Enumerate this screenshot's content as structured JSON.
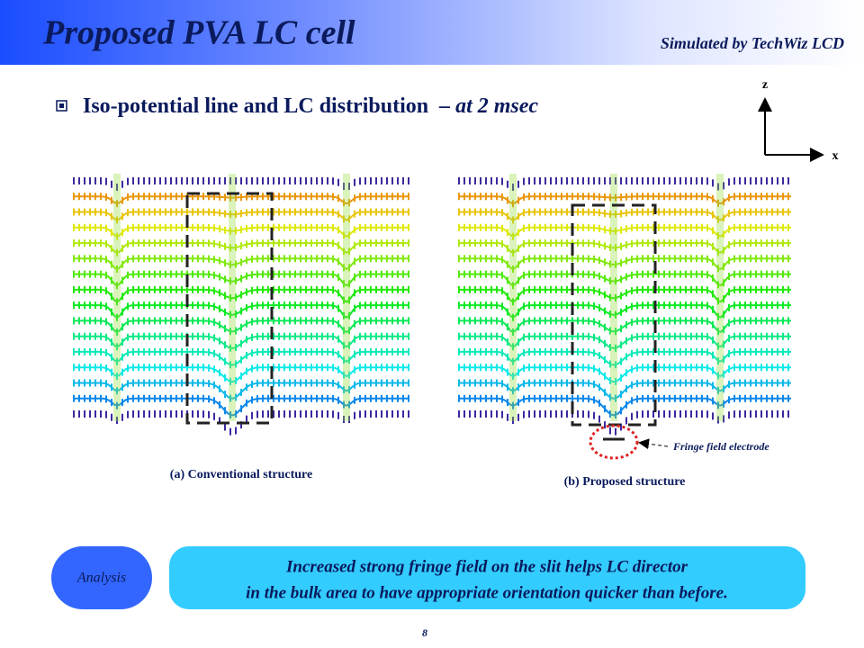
{
  "header": {
    "title": "Proposed PVA LC cell",
    "subtitle": "Simulated by TechWiz LCD"
  },
  "bullet": {
    "text": "Iso-potential line and LC distribution",
    "time": "– at 2 msec"
  },
  "axes": {
    "z": "z",
    "x": "x"
  },
  "figures": [
    {
      "caption": "(a) Conventional structure"
    },
    {
      "caption": "(b) Proposed structure",
      "note": "Fringe field electrode"
    }
  ],
  "analysis": {
    "label": "Analysis",
    "lines": [
      "Increased strong fringe field on the slit helps LC director",
      "in the bulk area to have appropriate orientation quicker than before."
    ]
  },
  "page_number": "8"
}
